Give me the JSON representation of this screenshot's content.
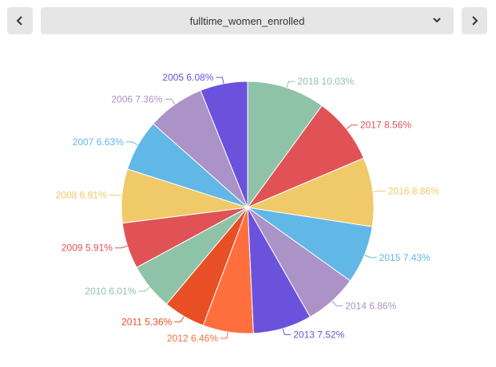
{
  "toolbar": {
    "prev_icon": "chevron-left-icon",
    "next_icon": "chevron-right-icon",
    "dropdown_icon": "chevron-down-icon",
    "selected_value": "fulltime_women_enrolled"
  },
  "chart_data": {
    "type": "pie",
    "title": "",
    "slices": [
      {
        "label": "2018",
        "value": 10.03,
        "color": "#8fc3a7"
      },
      {
        "label": "2017",
        "value": 8.56,
        "color": "#e05256"
      },
      {
        "label": "2016",
        "value": 8.86,
        "color": "#f0ca68"
      },
      {
        "label": "2015",
        "value": 7.43,
        "color": "#61b7e6"
      },
      {
        "label": "2014",
        "value": 6.86,
        "color": "#ab92c7"
      },
      {
        "label": "2013",
        "value": 7.52,
        "color": "#6b52dd"
      },
      {
        "label": "2012",
        "value": 6.46,
        "color": "#fe6f3d"
      },
      {
        "label": "2011",
        "value": 5.36,
        "color": "#e84f24"
      },
      {
        "label": "2010",
        "value": 6.01,
        "color": "#8fc3a7"
      },
      {
        "label": "2009",
        "value": 5.91,
        "color": "#e05256"
      },
      {
        "label": "2008",
        "value": 6.91,
        "color": "#f0ca68"
      },
      {
        "label": "2007",
        "value": 6.63,
        "color": "#61b7e6"
      },
      {
        "label": "2006",
        "value": 7.36,
        "color": "#ab92c7"
      },
      {
        "label": "2005",
        "value": 6.08,
        "color": "#6b52dd"
      }
    ]
  }
}
